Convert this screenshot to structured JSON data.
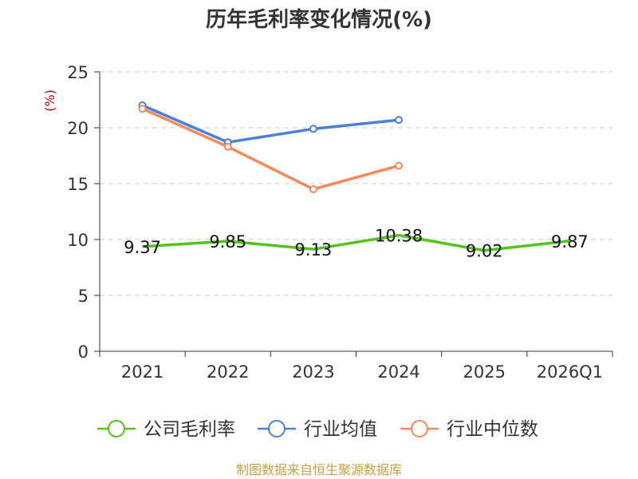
{
  "chart_data": {
    "type": "line",
    "title": "历年毛利率变化情况(%)",
    "ylabel": "(%)",
    "categories": [
      "2021",
      "2022",
      "2023",
      "2024",
      "2025",
      "2026Q1"
    ],
    "ylim": [
      0,
      25
    ],
    "yticks": [
      0,
      5,
      10,
      15,
      20,
      25
    ],
    "grid": true,
    "legend_position": "bottom",
    "series": [
      {
        "name": "公司毛利率",
        "color": "#52c41a",
        "values": [
          9.37,
          9.85,
          9.13,
          10.38,
          9.02,
          9.87
        ],
        "labels": [
          "9.37",
          "9.85",
          "9.13",
          "10.38",
          "9.02",
          "9.87"
        ]
      },
      {
        "name": "行业均值",
        "color": "#4a7fdb",
        "values": [
          22.0,
          18.7,
          19.9,
          20.7,
          null,
          null
        ]
      },
      {
        "name": "行业中位数",
        "color": "#f5895a",
        "values": [
          21.7,
          18.3,
          14.5,
          16.6,
          null,
          null
        ]
      }
    ]
  },
  "source_text": "制图数据来自恒生聚源数据库"
}
